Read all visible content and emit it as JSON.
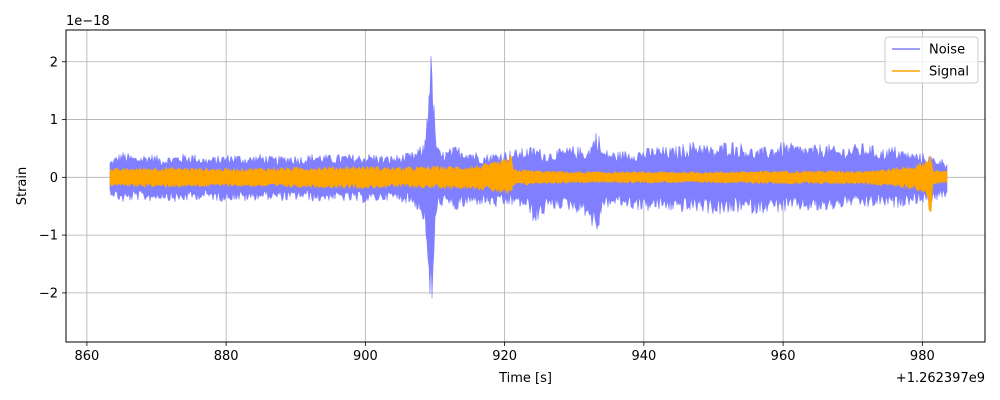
{
  "chart_data": {
    "type": "line",
    "xlabel": "Time [s]",
    "ylabel": "Strain",
    "y_scale_label": "1e−18",
    "x_offset_label": "+1.262397e9",
    "xlim": [
      857,
      989
    ],
    "ylim": [
      -2.85,
      2.55
    ],
    "x_ticks": [
      860,
      880,
      900,
      920,
      940,
      960,
      980
    ],
    "x_tick_labels": [
      "860",
      "880",
      "900",
      "920",
      "940",
      "960",
      "980"
    ],
    "y_ticks": [
      -2,
      -1,
      0,
      1,
      2
    ],
    "y_tick_labels": [
      "−2",
      "−1",
      "0",
      "1",
      "2"
    ],
    "grid": true,
    "legend_position": "top-right",
    "series": [
      {
        "name": "Noise",
        "color": "#7f7fff",
        "x": [
          863.3,
          865,
          867,
          869,
          871,
          873,
          875,
          877,
          879,
          881,
          883,
          885,
          887,
          889,
          891,
          893,
          895,
          897,
          899,
          901,
          903,
          905,
          907,
          908.5,
          909,
          909.3,
          909.6,
          910,
          910.5,
          911,
          913,
          915,
          917,
          919,
          921,
          923,
          924.5,
          926,
          928,
          930,
          932,
          933.3,
          934,
          936,
          938,
          940,
          942,
          944,
          946,
          948,
          950,
          952,
          954,
          956,
          958,
          960,
          962,
          964,
          966,
          968,
          970,
          972,
          974,
          976,
          978,
          980,
          982,
          983.6
        ],
        "upper": [
          0.3,
          0.45,
          0.38,
          0.42,
          0.36,
          0.4,
          0.43,
          0.35,
          0.38,
          0.42,
          0.37,
          0.41,
          0.36,
          0.4,
          0.38,
          0.43,
          0.39,
          0.41,
          0.4,
          0.42,
          0.38,
          0.4,
          0.45,
          0.6,
          1.5,
          2.3,
          2.0,
          0.9,
          0.5,
          0.45,
          0.55,
          0.5,
          0.4,
          0.45,
          0.48,
          0.52,
          0.55,
          0.45,
          0.5,
          0.55,
          0.5,
          0.88,
          0.5,
          0.45,
          0.48,
          0.5,
          0.55,
          0.52,
          0.6,
          0.65,
          0.52,
          0.66,
          0.6,
          0.5,
          0.55,
          0.62,
          0.58,
          0.55,
          0.6,
          0.52,
          0.58,
          0.6,
          0.5,
          0.55,
          0.45,
          0.42,
          0.35,
          0.3
        ],
        "lower": [
          -0.3,
          -0.45,
          -0.4,
          -0.42,
          -0.38,
          -0.45,
          -0.4,
          -0.38,
          -0.42,
          -0.4,
          -0.43,
          -0.38,
          -0.4,
          -0.42,
          -0.38,
          -0.44,
          -0.4,
          -0.42,
          -0.45,
          -0.44,
          -0.4,
          -0.42,
          -0.5,
          -0.8,
          -1.8,
          -2.6,
          -2.2,
          -1.0,
          -0.55,
          -0.5,
          -0.6,
          -0.5,
          -0.48,
          -0.55,
          -0.5,
          -0.55,
          -0.85,
          -0.6,
          -0.55,
          -0.6,
          -0.7,
          -1.1,
          -0.55,
          -0.5,
          -0.55,
          -0.6,
          -0.58,
          -0.6,
          -0.62,
          -0.6,
          -0.65,
          -0.68,
          -0.6,
          -0.65,
          -0.6,
          -0.62,
          -0.58,
          -0.6,
          -0.62,
          -0.55,
          -0.5,
          -0.55,
          -0.5,
          -0.55,
          -0.48,
          -0.45,
          -0.4,
          -0.35
        ]
      },
      {
        "name": "Signal",
        "color": "#ffa500",
        "x": [
          863.3,
          870,
          880,
          890,
          900,
          905,
          910,
          915,
          918,
          920,
          921,
          921.2,
          925,
          930,
          940,
          950,
          960,
          970,
          975,
          979,
          980.5,
          981.3,
          981.5,
          983.6
        ],
        "upper": [
          0.15,
          0.18,
          0.16,
          0.18,
          0.2,
          0.18,
          0.2,
          0.2,
          0.25,
          0.32,
          0.4,
          0.15,
          0.12,
          0.1,
          0.1,
          0.1,
          0.12,
          0.12,
          0.15,
          0.22,
          0.3,
          0.5,
          0.12,
          0.12
        ],
        "lower": [
          -0.15,
          -0.18,
          -0.16,
          -0.18,
          -0.2,
          -0.18,
          -0.2,
          -0.2,
          -0.25,
          -0.3,
          -0.38,
          -0.15,
          -0.12,
          -0.1,
          -0.1,
          -0.1,
          -0.12,
          -0.12,
          -0.15,
          -0.22,
          -0.3,
          -0.8,
          -0.12,
          -0.12
        ]
      }
    ]
  }
}
